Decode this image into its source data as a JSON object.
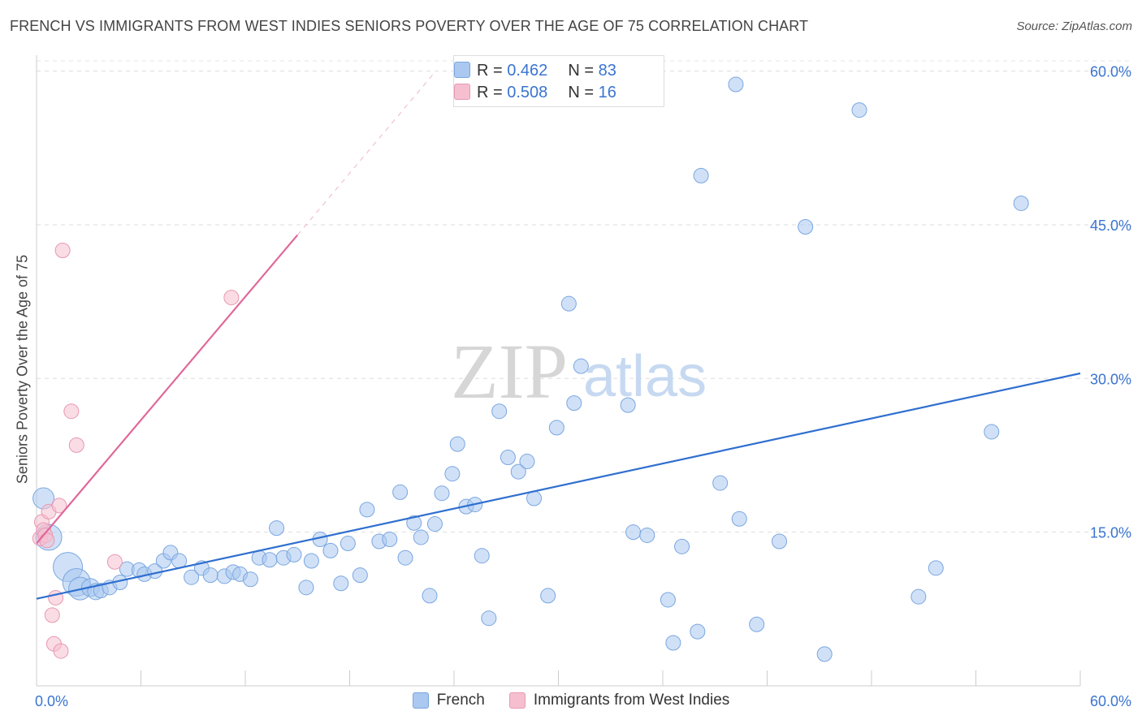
{
  "title": "FRENCH VS IMMIGRANTS FROM WEST INDIES SENIORS POVERTY OVER THE AGE OF 75 CORRELATION CHART",
  "source": "Source: ZipAtlas.com",
  "watermark": {
    "zip": "ZIP",
    "atlas": "atlas"
  },
  "stats": [
    {
      "r_label": "R =",
      "r_value": "0.462",
      "n_label": "N =",
      "n_value": "83",
      "color": "#aac8f0"
    },
    {
      "r_label": "R =",
      "r_value": "0.508",
      "n_label": "N =",
      "n_value": "16",
      "color": "#f6bfd0"
    }
  ],
  "legend": [
    {
      "label": "French",
      "color": "#aac8f0"
    },
    {
      "label": "Immigrants from West Indies",
      "color": "#f6bfd0"
    }
  ],
  "chart_data": {
    "type": "scatter",
    "title": "FRENCH VS IMMIGRANTS FROM WEST INDIES SENIORS POVERTY OVER THE AGE OF 75 CORRELATION CHART",
    "xlabel": "",
    "ylabel": "Seniors Poverty Over the Age of 75",
    "xlim": [
      0,
      60
    ],
    "ylim": [
      0,
      61
    ],
    "x_tick_labels": [
      "0.0%",
      "60.0%"
    ],
    "y_ticks": [
      15,
      30,
      45,
      60
    ],
    "y_tick_labels": [
      "15.0%",
      "30.0%",
      "45.0%",
      "60.0%"
    ],
    "grid": true,
    "legend_position": "bottom",
    "colors": {
      "french": "#aac8f0",
      "french_line": "#2f6fcf",
      "west_indies": "#f6bfd0",
      "west_indies_line": "#e0689a",
      "tick_label": "#3a74d0"
    },
    "series": [
      {
        "name": "French",
        "trend": {
          "x": [
            0,
            60
          ],
          "y": [
            8.5,
            30.5
          ]
        },
        "points": [
          [
            0.4,
            18.3,
            13
          ],
          [
            0.7,
            14.5,
            16
          ],
          [
            1.8,
            11.6,
            18
          ],
          [
            2.3,
            10.1,
            17
          ],
          [
            2.5,
            9.5,
            14
          ],
          [
            3.1,
            9.6,
            11
          ],
          [
            3.4,
            9.2,
            10
          ],
          [
            3.7,
            9.3,
            9
          ],
          [
            4.2,
            9.6,
            9
          ],
          [
            4.8,
            10.1,
            9
          ],
          [
            5.2,
            11.4,
            9
          ],
          [
            5.9,
            11.3,
            9
          ],
          [
            6.2,
            10.9,
            9
          ],
          [
            6.8,
            11.2,
            9
          ],
          [
            7.3,
            12.2,
            9
          ],
          [
            7.7,
            13.0,
            9
          ],
          [
            8.2,
            12.2,
            9
          ],
          [
            8.9,
            10.6,
            9
          ],
          [
            9.5,
            11.5,
            9
          ],
          [
            10.0,
            10.8,
            9
          ],
          [
            10.8,
            10.7,
            9
          ],
          [
            11.3,
            11.1,
            9
          ],
          [
            11.7,
            10.9,
            9
          ],
          [
            12.3,
            10.4,
            9
          ],
          [
            12.8,
            12.5,
            9
          ],
          [
            13.4,
            12.3,
            9
          ],
          [
            13.8,
            15.4,
            9
          ],
          [
            14.2,
            12.5,
            9
          ],
          [
            14.8,
            12.8,
            9
          ],
          [
            15.5,
            9.6,
            9
          ],
          [
            15.8,
            12.2,
            9
          ],
          [
            16.3,
            14.3,
            9
          ],
          [
            16.9,
            13.2,
            9
          ],
          [
            17.5,
            10.0,
            9
          ],
          [
            17.9,
            13.9,
            9
          ],
          [
            18.6,
            10.8,
            9
          ],
          [
            19.0,
            17.2,
            9
          ],
          [
            19.7,
            14.1,
            9
          ],
          [
            20.3,
            14.3,
            9
          ],
          [
            20.9,
            18.9,
            9
          ],
          [
            21.2,
            12.5,
            9
          ],
          [
            21.7,
            15.9,
            9
          ],
          [
            22.1,
            14.5,
            9
          ],
          [
            22.6,
            8.8,
            9
          ],
          [
            22.9,
            15.8,
            9
          ],
          [
            23.3,
            18.8,
            9
          ],
          [
            23.9,
            20.7,
            9
          ],
          [
            24.2,
            23.6,
            9
          ],
          [
            24.7,
            17.5,
            9
          ],
          [
            25.2,
            17.7,
            9
          ],
          [
            25.6,
            12.7,
            9
          ],
          [
            26.0,
            6.6,
            9
          ],
          [
            26.6,
            26.8,
            9
          ],
          [
            27.1,
            22.3,
            9
          ],
          [
            27.7,
            20.9,
            9
          ],
          [
            28.2,
            21.9,
            9
          ],
          [
            28.6,
            18.3,
            9
          ],
          [
            29.4,
            8.8,
            9
          ],
          [
            29.9,
            25.2,
            9
          ],
          [
            30.6,
            37.3,
            9
          ],
          [
            30.9,
            27.6,
            9
          ],
          [
            31.3,
            31.2,
            9
          ],
          [
            34.0,
            27.4,
            9
          ],
          [
            34.3,
            15.0,
            9
          ],
          [
            35.1,
            14.7,
            9
          ],
          [
            36.3,
            8.4,
            9
          ],
          [
            36.6,
            4.2,
            9
          ],
          [
            37.1,
            13.6,
            9
          ],
          [
            38.0,
            5.3,
            9
          ],
          [
            38.2,
            49.8,
            9
          ],
          [
            39.3,
            19.8,
            9
          ],
          [
            40.2,
            58.7,
            9
          ],
          [
            40.4,
            16.3,
            9
          ],
          [
            41.4,
            6.0,
            9
          ],
          [
            42.7,
            14.1,
            9
          ],
          [
            44.2,
            44.8,
            9
          ],
          [
            45.3,
            3.1,
            9
          ],
          [
            47.3,
            56.2,
            9
          ],
          [
            50.7,
            8.7,
            9
          ],
          [
            51.7,
            11.5,
            9
          ],
          [
            54.9,
            24.8,
            9
          ],
          [
            56.6,
            47.1,
            9
          ]
        ]
      },
      {
        "name": "Immigrants from West Indies",
        "trend": {
          "x": [
            0,
            15
          ],
          "y": [
            13.9,
            44.0
          ]
        },
        "trend_extension": {
          "x": [
            15,
            22.8
          ],
          "y": [
            44.0,
            59.7
          ]
        },
        "points": [
          [
            0.2,
            14.4,
            9
          ],
          [
            0.3,
            16.0,
            9
          ],
          [
            0.4,
            15.2,
            9
          ],
          [
            0.5,
            14.7,
            9
          ],
          [
            0.6,
            14.2,
            9
          ],
          [
            0.7,
            17.0,
            9
          ],
          [
            0.9,
            6.9,
            9
          ],
          [
            1.0,
            4.1,
            9
          ],
          [
            1.1,
            8.6,
            9
          ],
          [
            1.3,
            17.6,
            9
          ],
          [
            1.4,
            3.4,
            9
          ],
          [
            1.5,
            42.5,
            9
          ],
          [
            2.0,
            26.8,
            9
          ],
          [
            2.3,
            23.5,
            9
          ],
          [
            4.5,
            12.1,
            9
          ],
          [
            11.2,
            37.9,
            9
          ]
        ]
      }
    ]
  }
}
